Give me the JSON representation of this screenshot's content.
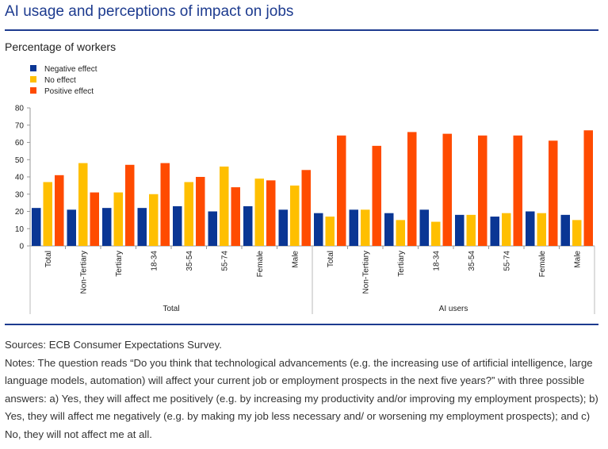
{
  "header": {
    "title": "AI usage and perceptions of impact on jobs",
    "subtitle": "Percentage of workers"
  },
  "footer": {
    "sources": "Sources: ECB Consumer Expectations Survey.",
    "notes": "Notes: The question reads “Do you think that technological advancements (e.g. the increasing use of artificial intelligence, large language models, automation) will affect your current job or employment prospects in the next five years?” with three possible answers: a) Yes, they will affect me positively (e.g. by increasing my productivity and/or improving my employment prospects); b) Yes, they will affect me negatively (e.g. by making my job less necessary and/ or worsening my employment prospects); and c) No, they will not affect me at all."
  },
  "chart_data": {
    "type": "bar",
    "title": "AI usage and perceptions of impact on jobs",
    "ylabel": "Percentage of workers",
    "ylim": [
      0,
      80
    ],
    "yticks": [
      0,
      10,
      20,
      30,
      40,
      50,
      60,
      70,
      80
    ],
    "grid": false,
    "legend_position": "top-left",
    "groups": [
      {
        "label": "Total",
        "categories": [
          "Total",
          "Non-Tertiary",
          "Tertiary",
          "18-34",
          "35-54",
          "55-74",
          "Female",
          "Male"
        ]
      },
      {
        "label": "AI users",
        "categories": [
          "Total",
          "Non-Tertiary",
          "Tertiary",
          "18-34",
          "35-54",
          "55-74",
          "Female",
          "Male"
        ]
      }
    ],
    "series": [
      {
        "name": "Negative effect",
        "color": "#0a3694",
        "values": [
          22,
          21,
          22,
          22,
          23,
          20,
          23,
          21,
          19,
          21,
          19,
          21,
          18,
          17,
          20,
          18
        ]
      },
      {
        "name": "No effect",
        "color": "#ffbf00",
        "values": [
          37,
          48,
          31,
          30,
          37,
          46,
          39,
          35,
          17,
          21,
          15,
          14,
          18,
          19,
          19,
          15
        ]
      },
      {
        "name": "Positive effect",
        "color": "#ff4b00",
        "values": [
          41,
          31,
          47,
          48,
          40,
          34,
          38,
          44,
          64,
          58,
          66,
          65,
          64,
          64,
          61,
          67
        ]
      }
    ]
  }
}
